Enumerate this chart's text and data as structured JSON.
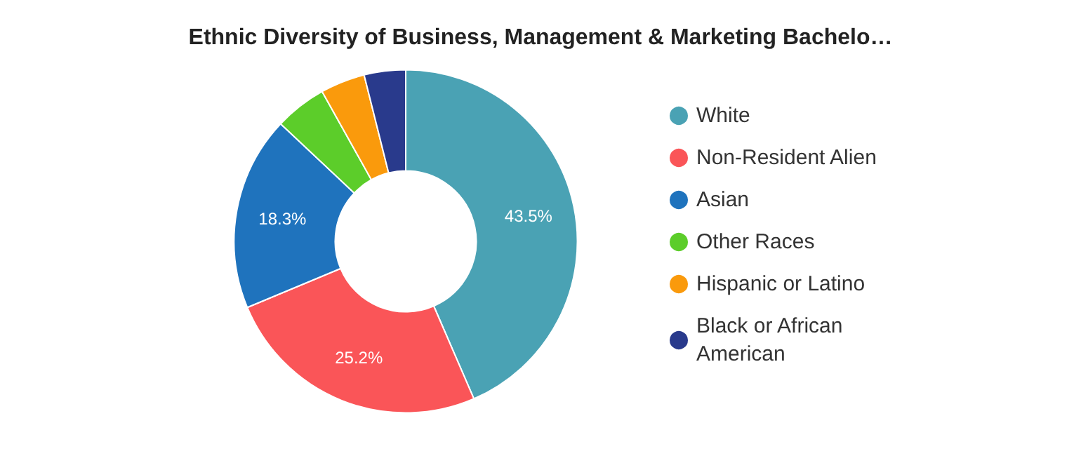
{
  "chart_data": {
    "type": "donut",
    "title": "Ethnic Diversity of Business, Management & Marketing Bachelo…",
    "categories": [
      "White",
      "Non-Resident Alien",
      "Asian",
      "Other Races",
      "Hispanic or Latino",
      "Black or African American"
    ],
    "values": [
      43.5,
      25.2,
      18.3,
      4.9,
      4.2,
      3.9
    ],
    "colors": [
      "#4aa2b4",
      "#fa5558",
      "#1f73bd",
      "#5ccd2a",
      "#fa9a0c",
      "#293a8c"
    ],
    "value_labels": [
      "43.5%",
      "25.2%",
      "18.3%",
      null,
      null,
      null
    ],
    "legend": "right"
  }
}
